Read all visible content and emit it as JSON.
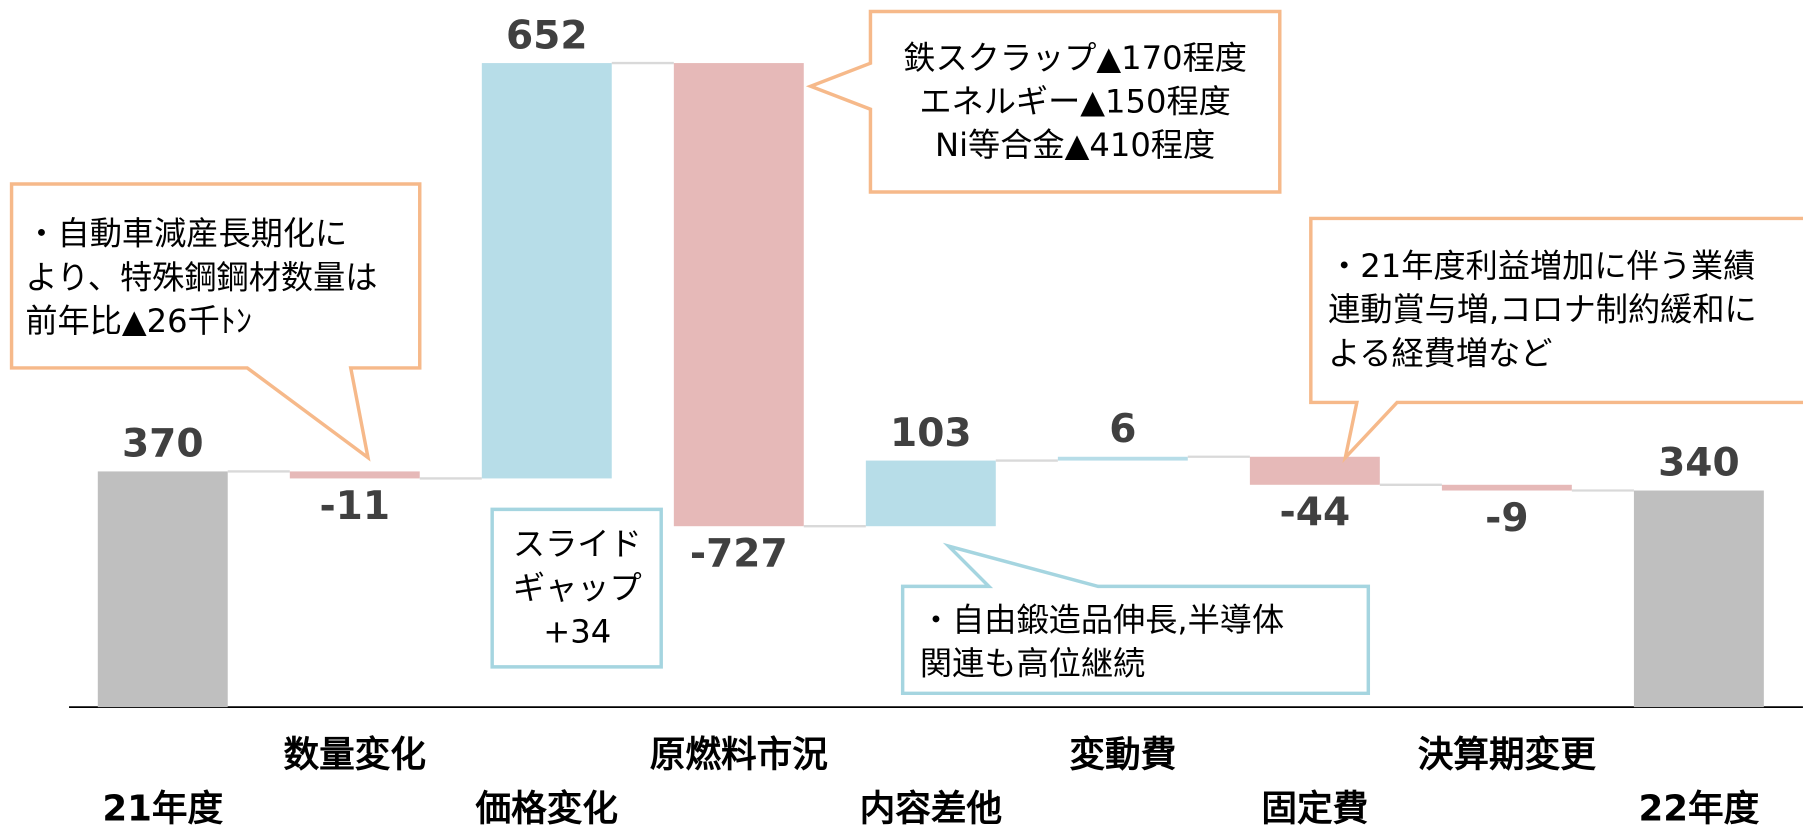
{
  "chart_data": {
    "type": "waterfall",
    "categories": [
      "21年度",
      "数量変化",
      "価格変化",
      "原燃料市況",
      "内容差他",
      "変動費",
      "固定費",
      "決算期変更",
      "22年度"
    ],
    "values": [
      370,
      -11,
      652,
      -727,
      103,
      6,
      -44,
      -9,
      340
    ],
    "total_color": "#bfbfbf",
    "increase_color": "#b7dde8",
    "decrease_color": "#e6b9b8",
    "ylim": [
      0,
      1110
    ],
    "annotations": [
      {
        "lines": [
          "・自動車減産長期化に",
          "より、特殊鋼鋼材数量は",
          "前年比▲26千ﾄﾝ"
        ],
        "border": "#f6b98a"
      },
      {
        "lines": [
          "鉄スクラップ▲170程度",
          "エネルギー▲150程度",
          "Ni等合金▲410程度"
        ],
        "border": "#f6b98a"
      },
      {
        "lines": [
          "スライド",
          "ギャップ",
          "+34"
        ],
        "border": "#a5d5e0"
      },
      {
        "lines": [
          "・自由鍛造品伸長,半導体",
          "関連も高位継続"
        ],
        "border": "#a5d5e0"
      },
      {
        "lines": [
          "・21年度利益増加に伴う業績",
          "連動賞与増,コロナ制約緩和に",
          "よる経費増など"
        ],
        "border": "#f6b98a"
      }
    ]
  }
}
